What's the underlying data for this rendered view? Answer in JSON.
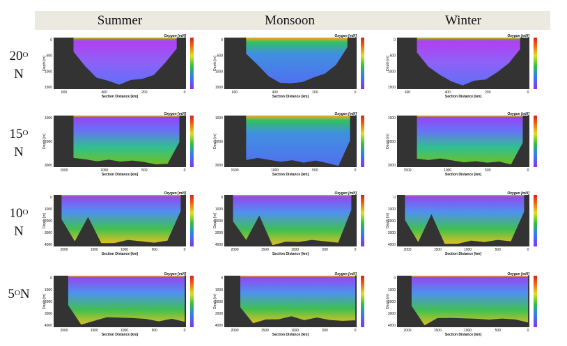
{
  "header": {
    "columns": [
      "Summer",
      "Monsoon",
      "Winter"
    ]
  },
  "rows": [
    {
      "label": {
        "number": "20",
        "degree": "O",
        "dir": "N"
      },
      "yticks": [
        "0",
        "500",
        "1000",
        "1500"
      ],
      "xticks": [
        "600",
        "400",
        "200",
        "0"
      ]
    },
    {
      "label": {
        "number": "15",
        "degree": "O",
        "dir": "N"
      },
      "yticks": [
        "1000",
        "2000",
        "3000"
      ],
      "xticks": [
        "1500",
        "1000",
        "500",
        "0"
      ]
    },
    {
      "label": {
        "number": "10",
        "degree": "O",
        "dir": "N"
      },
      "yticks": [
        "0",
        "1000",
        "2000",
        "3000",
        "4000"
      ],
      "xticks": [
        "2000",
        "1500",
        "1000",
        "500",
        "0"
      ]
    },
    {
      "label": {
        "number": "5",
        "degree": "O",
        "dir": "N"
      },
      "yticks": [
        "0",
        "1000",
        "2000",
        "3000",
        "4000"
      ],
      "xticks": [
        "2000",
        "1500",
        "1000",
        "500",
        "0"
      ]
    }
  ],
  "panel": {
    "title": "Oxygen [ml/l]",
    "y_label": "Depth [m]",
    "x_label": "Section Distance [km]"
  }
}
